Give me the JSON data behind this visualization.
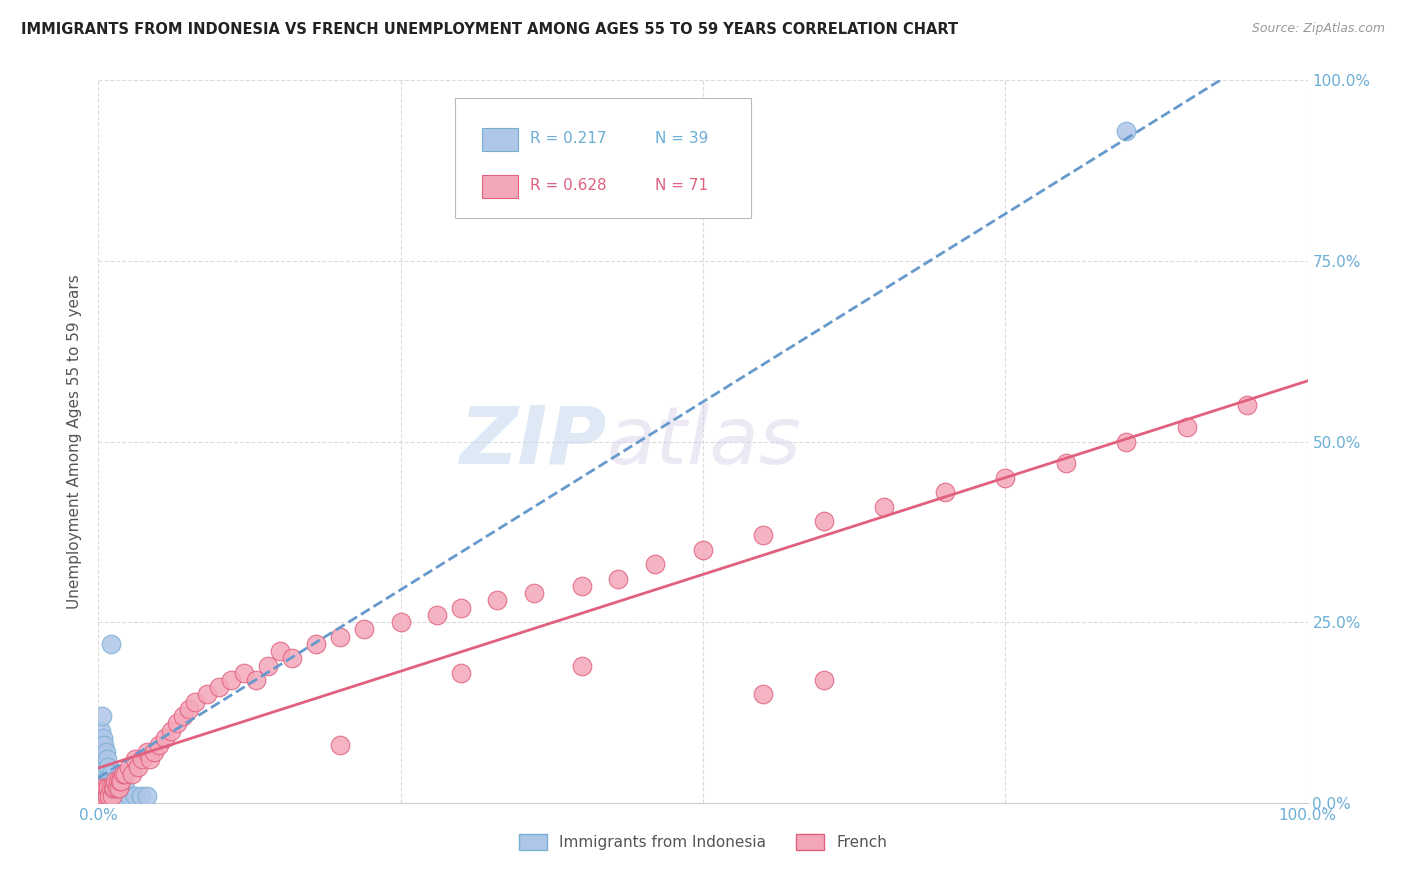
{
  "title": "IMMIGRANTS FROM INDONESIA VS FRENCH UNEMPLOYMENT AMONG AGES 55 TO 59 YEARS CORRELATION CHART",
  "source": "Source: ZipAtlas.com",
  "ylabel": "Unemployment Among Ages 55 to 59 years",
  "xlim": [
    0,
    1.0
  ],
  "ylim": [
    0,
    1.0
  ],
  "background_color": "#ffffff",
  "grid_color": "#cccccc",
  "watermark_zip": "ZIP",
  "watermark_atlas": "atlas",
  "stat_box": {
    "r1": "0.217",
    "n1": "39",
    "r2": "0.628",
    "n2": "71",
    "color1": "#6baed6",
    "color2": "#e0607e"
  },
  "legend_entries": [
    {
      "label": "Immigrants from Indonesia",
      "color": "#aec6e8",
      "edge": "#7aafd4"
    },
    {
      "label": "French",
      "color": "#f4a7b9",
      "edge": "#e0607e"
    }
  ],
  "series": [
    {
      "name": "Indonesia",
      "color": "#aec6e8",
      "edge_color": "#7aafd4",
      "trendline_color": "#6699cc",
      "trendline_style": "--",
      "x": [
        0.001,
        0.001,
        0.001,
        0.002,
        0.002,
        0.002,
        0.003,
        0.003,
        0.003,
        0.003,
        0.004,
        0.004,
        0.004,
        0.004,
        0.005,
        0.005,
        0.005,
        0.006,
        0.006,
        0.007,
        0.007,
        0.008,
        0.008,
        0.009,
        0.01,
        0.01,
        0.011,
        0.012,
        0.013,
        0.015,
        0.018,
        0.02,
        0.022,
        0.025,
        0.03,
        0.035,
        0.04,
        0.01,
        0.85
      ],
      "y": [
        0.02,
        0.04,
        0.07,
        0.03,
        0.06,
        0.1,
        0.02,
        0.05,
        0.08,
        0.12,
        0.02,
        0.04,
        0.06,
        0.09,
        0.02,
        0.05,
        0.08,
        0.03,
        0.07,
        0.03,
        0.06,
        0.02,
        0.05,
        0.03,
        0.02,
        0.04,
        0.02,
        0.03,
        0.02,
        0.02,
        0.02,
        0.01,
        0.02,
        0.01,
        0.01,
        0.01,
        0.01,
        0.22,
        0.93
      ]
    },
    {
      "name": "French",
      "color": "#f4a7b9",
      "edge_color": "#e0607e",
      "trendline_color": "#e0607e",
      "trendline_style": "-",
      "x": [
        0.001,
        0.002,
        0.003,
        0.003,
        0.004,
        0.005,
        0.006,
        0.007,
        0.008,
        0.009,
        0.01,
        0.011,
        0.012,
        0.013,
        0.014,
        0.015,
        0.016,
        0.017,
        0.018,
        0.019,
        0.02,
        0.022,
        0.025,
        0.028,
        0.03,
        0.033,
        0.036,
        0.04,
        0.043,
        0.046,
        0.05,
        0.055,
        0.06,
        0.065,
        0.07,
        0.075,
        0.08,
        0.09,
        0.1,
        0.11,
        0.12,
        0.13,
        0.14,
        0.15,
        0.16,
        0.18,
        0.2,
        0.22,
        0.25,
        0.28,
        0.3,
        0.33,
        0.36,
        0.4,
        0.43,
        0.46,
        0.5,
        0.55,
        0.6,
        0.65,
        0.7,
        0.75,
        0.8,
        0.85,
        0.9,
        0.95,
        0.55,
        0.3,
        0.2,
        0.4,
        0.6
      ],
      "y": [
        0.01,
        0.01,
        0.01,
        0.02,
        0.01,
        0.01,
        0.02,
        0.01,
        0.02,
        0.01,
        0.02,
        0.01,
        0.02,
        0.02,
        0.03,
        0.02,
        0.03,
        0.02,
        0.03,
        0.03,
        0.04,
        0.04,
        0.05,
        0.04,
        0.06,
        0.05,
        0.06,
        0.07,
        0.06,
        0.07,
        0.08,
        0.09,
        0.1,
        0.11,
        0.12,
        0.13,
        0.14,
        0.15,
        0.16,
        0.17,
        0.18,
        0.17,
        0.19,
        0.21,
        0.2,
        0.22,
        0.23,
        0.24,
        0.25,
        0.26,
        0.27,
        0.28,
        0.29,
        0.3,
        0.31,
        0.33,
        0.35,
        0.37,
        0.39,
        0.41,
        0.43,
        0.45,
        0.47,
        0.5,
        0.52,
        0.55,
        0.15,
        0.18,
        0.08,
        0.19,
        0.17
      ]
    }
  ]
}
